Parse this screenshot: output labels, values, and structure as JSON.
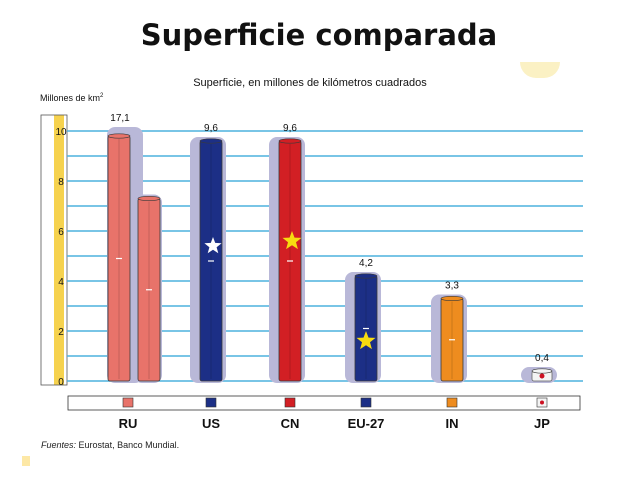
{
  "slide": {
    "title": "Superficie comparada",
    "source_label": "Fuentes:",
    "source_text": "Eurostat, Banco Mundial."
  },
  "colors": {
    "RU": "#e8736a",
    "US": "#1c2f86",
    "CN": "#d21f24",
    "EU-27": "#1c2f86",
    "IN": "#ee8c1f",
    "JP": "#f4f4f4",
    "gridline": "#4db2dd",
    "shadow": "#b9b8d8",
    "axis_bar": "#f6d24e",
    "star_white": "#ffffff",
    "star_yellow": "#f7dc10"
  },
  "chart_data": {
    "type": "bar",
    "title": "Superficie, en millones de kilómetros cuadrados",
    "ylabel": "Millones de km²",
    "xlabel": "",
    "ylim": [
      0,
      10
    ],
    "yticks": [
      0,
      2,
      4,
      6,
      8,
      10
    ],
    "grid": true,
    "categories": [
      "RU",
      "US",
      "CN",
      "EU-27",
      "IN",
      "JP"
    ],
    "values": [
      17.1,
      9.6,
      9.6,
      4.2,
      3.3,
      0.4
    ],
    "value_labels": [
      "17,1",
      "9,6",
      "9,6",
      "4,2",
      "3,3",
      "0,4"
    ]
  }
}
